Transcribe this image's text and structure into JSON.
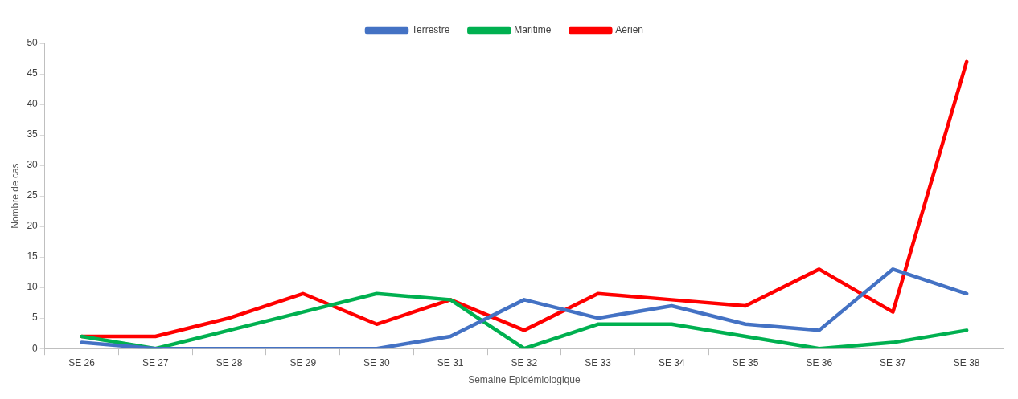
{
  "chart_data": {
    "type": "line",
    "xlabel": "Semaine Epidémiologique",
    "ylabel": "Nombre de cas",
    "categories": [
      "SE 26",
      "SE 27",
      "SE 28",
      "SE 29",
      "SE 30",
      "SE 31",
      "SE 32",
      "SE 33",
      "SE 34",
      "SE 35",
      "SE 36",
      "SE 37",
      "SE 38"
    ],
    "series": [
      {
        "name": "Terrestre",
        "color": "#4472c4",
        "values": [
          1,
          0,
          0,
          0,
          0,
          2,
          8,
          5,
          7,
          4,
          3,
          13,
          9
        ]
      },
      {
        "name": "Maritime",
        "color": "#00b050",
        "values": [
          2,
          0,
          3,
          6,
          9,
          8,
          0,
          4,
          4,
          2,
          0,
          1,
          3
        ]
      },
      {
        "name": "Aérien",
        "color": "#ff0000",
        "values": [
          2,
          2,
          5,
          9,
          4,
          8,
          3,
          9,
          8,
          7,
          13,
          6,
          47
        ]
      }
    ],
    "ylim": [
      0,
      50
    ],
    "yticks": [
      0,
      5,
      10,
      15,
      20,
      25,
      30,
      35,
      40,
      45,
      50
    ],
    "grid": false,
    "legend": "top",
    "marker": "none",
    "line_style": "solid"
  }
}
